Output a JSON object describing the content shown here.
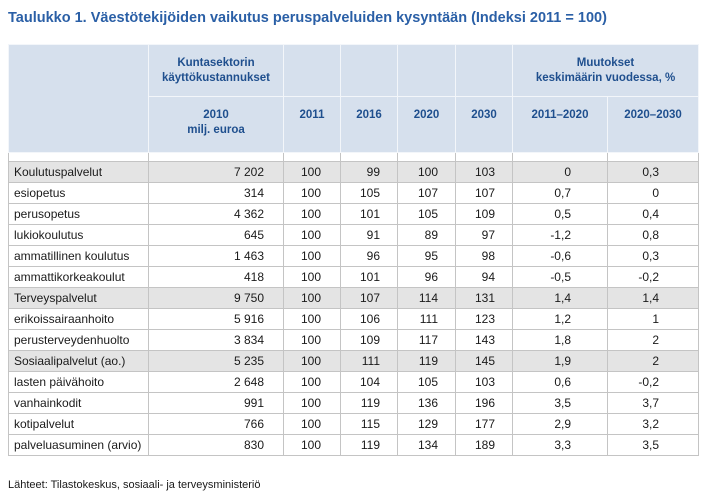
{
  "title": "Taulukko 1. Väestötekijöiden vaikutus peruspalveluiden kysyntään (Indeksi 2011 = 100)",
  "header": {
    "cost_group": [
      "Kuntasektorin",
      "käyttökustannukset"
    ],
    "change_group": [
      "Muutokset",
      "keskimäärin vuodessa, %"
    ],
    "columns": [
      "2010",
      "2011",
      "2016",
      "2020",
      "2030",
      "2011–2020",
      "2020–2030"
    ],
    "unit_2010": "milj. euroa"
  },
  "rows": [
    {
      "label": "Koulutuspalvelut",
      "values": [
        "7 202",
        "100",
        "99",
        "100",
        "103",
        "0",
        "0,3"
      ]
    },
    {
      "label": "esiopetus",
      "values": [
        "314",
        "100",
        "105",
        "107",
        "107",
        "0,7",
        "0"
      ]
    },
    {
      "label": "perusopetus",
      "values": [
        "4 362",
        "100",
        "101",
        "105",
        "109",
        "0,5",
        "0,4"
      ]
    },
    {
      "label": "lukiokoulutus",
      "values": [
        "645",
        "100",
        "91",
        "89",
        "97",
        "-1,2",
        "0,8"
      ]
    },
    {
      "label": "ammatillinen koulutus",
      "values": [
        "1 463",
        "100",
        "96",
        "95",
        "98",
        "-0,6",
        "0,3"
      ]
    },
    {
      "label": "ammattikorkeakoulut",
      "values": [
        "418",
        "100",
        "101",
        "96",
        "94",
        "-0,5",
        "-0,2"
      ]
    },
    {
      "label": "Terveyspalvelut",
      "values": [
        "9 750",
        "100",
        "107",
        "114",
        "131",
        "1,4",
        "1,4"
      ]
    },
    {
      "label": "erikoissairaanhoito",
      "values": [
        "5 916",
        "100",
        "106",
        "111",
        "123",
        "1,2",
        "1"
      ]
    },
    {
      "label": "perusterveydenhuolto",
      "values": [
        "3 834",
        "100",
        "109",
        "117",
        "143",
        "1,8",
        "2"
      ]
    },
    {
      "label": "Sosiaalipalvelut (ao.)",
      "values": [
        "5 235",
        "100",
        "111",
        "119",
        "145",
        "1,9",
        "2"
      ]
    },
    {
      "label": "lasten päivähoito",
      "values": [
        "2 648",
        "100",
        "104",
        "105",
        "103",
        "0,6",
        "-0,2"
      ]
    },
    {
      "label": "vanhainkodit",
      "values": [
        "991",
        "100",
        "119",
        "136",
        "196",
        "3,5",
        "3,7"
      ]
    },
    {
      "label": "kotipalvelut",
      "values": [
        "766",
        "100",
        "115",
        "129",
        "177",
        "2,9",
        "3,2"
      ]
    },
    {
      "label": "palveluasuminen (arvio)",
      "values": [
        "830",
        "100",
        "119",
        "134",
        "189",
        "3,3",
        "3,5"
      ]
    }
  ],
  "source": "Lähteet: Tilastokeskus, sosiaali- ja terveysministeriö",
  "colors": {
    "title": "#2a5fa6",
    "header_text": "#1f4f8e",
    "header_bg": "#d6e0ed",
    "category_row_bg": "#e4e4e4",
    "grid": "#c4c4c4"
  }
}
